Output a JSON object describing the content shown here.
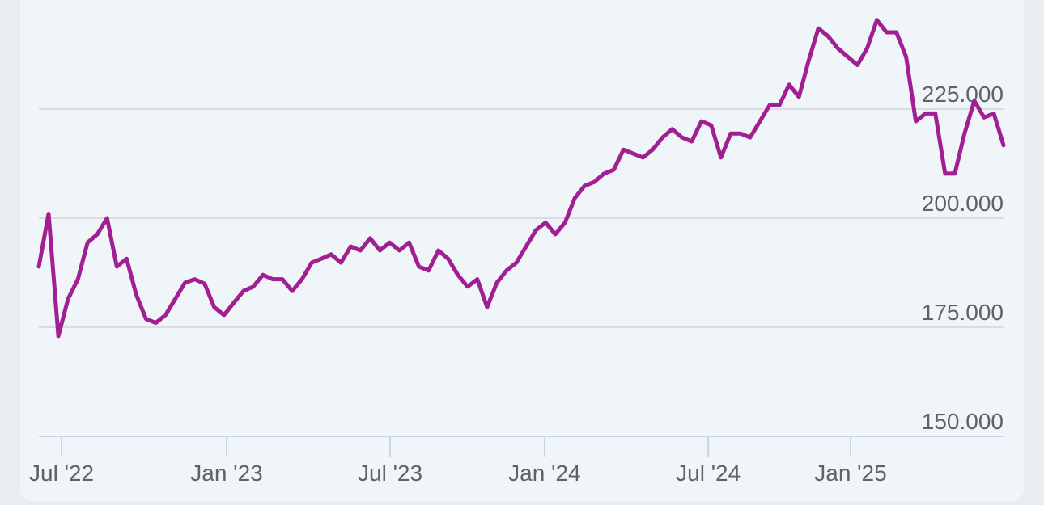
{
  "chart_data": {
    "type": "line",
    "color": "#a11f93",
    "grid": true,
    "xlim": [
      0,
      99
    ],
    "xticks": [
      {
        "value": 2.33,
        "label": "Jul '22"
      },
      {
        "value": 19.27,
        "label": "Jan '23"
      },
      {
        "value": 36.05,
        "label": "Jul '23"
      },
      {
        "value": 51.9,
        "label": "Jan '24"
      },
      {
        "value": 68.7,
        "label": "Jul '24"
      },
      {
        "value": 83.3,
        "label": "Jan '25"
      }
    ],
    "ylim": [
      150,
      250
    ],
    "yticks": [
      {
        "value": 150,
        "label": "150.000"
      },
      {
        "value": 175,
        "label": "175.000"
      },
      {
        "value": 200,
        "label": "200.000"
      },
      {
        "value": 225,
        "label": "225.000"
      }
    ],
    "values": [
      188.9,
      201,
      173,
      181.5,
      186,
      194.4,
      196.3,
      200,
      188.9,
      190.7,
      182.4,
      176.9,
      176,
      177.8,
      181.5,
      185.2,
      186,
      185,
      179.6,
      177.8,
      180.6,
      183.3,
      184.3,
      187,
      186,
      186,
      183.3,
      186,
      189.8,
      190.7,
      191.7,
      189.8,
      193.5,
      192.6,
      195.4,
      192.6,
      194.4,
      192.6,
      194.4,
      188.9,
      188,
      192.6,
      190.7,
      187,
      184.3,
      186,
      179.6,
      185.2,
      188,
      189.8,
      193.5,
      197.2,
      199,
      196.3,
      199,
      204.6,
      207.4,
      208.3,
      210.2,
      211.1,
      215.7,
      214.8,
      213.9,
      215.7,
      218.5,
      220.4,
      218.5,
      217.6,
      222.2,
      221.3,
      213.9,
      219.4,
      219.4,
      218.5,
      222.2,
      225.9,
      225.9,
      230.6,
      227.8,
      236.1,
      243.5,
      241.7,
      238.9,
      237,
      235.1,
      238.9,
      245.4,
      242.6,
      242.6,
      237,
      222.2,
      224,
      224,
      210.2,
      210.2,
      219.4,
      226.9,
      223.1,
      224,
      216.7
    ]
  }
}
